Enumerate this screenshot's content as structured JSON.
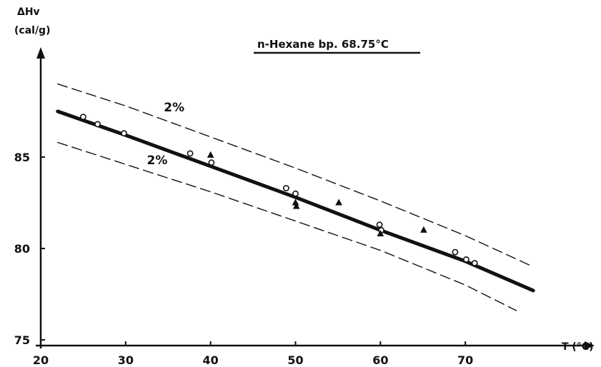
{
  "chart_data": {
    "type": "line",
    "title": "n-Hexane bp. 68.75°C",
    "ylabel_line1": "ΔHv",
    "ylabel_line2": "(cal/g)",
    "xlabel": "T (°C)",
    "xlim": [
      20,
      80
    ],
    "ylim": [
      75,
      90
    ],
    "x_ticks": [
      20,
      30,
      40,
      50,
      60,
      70
    ],
    "y_ticks": [
      75,
      80,
      85
    ],
    "grid": false,
    "series": [
      {
        "style": "thick",
        "x": [
          22,
          30,
          40,
          50,
          60,
          70,
          78
        ],
        "y": [
          87.5,
          86.2,
          84.5,
          82.8,
          81.0,
          79.3,
          77.7
        ]
      },
      {
        "style": "dashed",
        "x": [
          22,
          30,
          40,
          50,
          60,
          70,
          78
        ],
        "y": [
          89.0,
          87.8,
          86.1,
          84.4,
          82.6,
          80.7,
          79.0
        ]
      },
      {
        "style": "dashed",
        "x": [
          22,
          30,
          40,
          50,
          60,
          70,
          76
        ],
        "y": [
          85.8,
          84.6,
          83.1,
          81.5,
          79.9,
          78.0,
          76.6
        ]
      }
    ],
    "points_circle": {
      "x": [
        25,
        26.7,
        29.8,
        37.6,
        40.1,
        48.9,
        50.0,
        59.9,
        60.1,
        68.8,
        70.1,
        71.1
      ],
      "y": [
        87.2,
        86.8,
        86.3,
        85.2,
        84.7,
        83.3,
        83.0,
        81.3,
        81.0,
        79.8,
        79.4,
        79.2
      ]
    },
    "points_triangle": {
      "x": [
        40.0,
        50.0,
        50.1,
        55.1,
        60.0,
        65.1
      ],
      "y": [
        85.1,
        82.5,
        82.3,
        82.5,
        80.8,
        81.0
      ]
    },
    "annotations": [
      {
        "text": "2%",
        "x": 34.5,
        "y": 87.5
      },
      {
        "text": "2%",
        "x": 32.5,
        "y": 84.6
      }
    ]
  }
}
